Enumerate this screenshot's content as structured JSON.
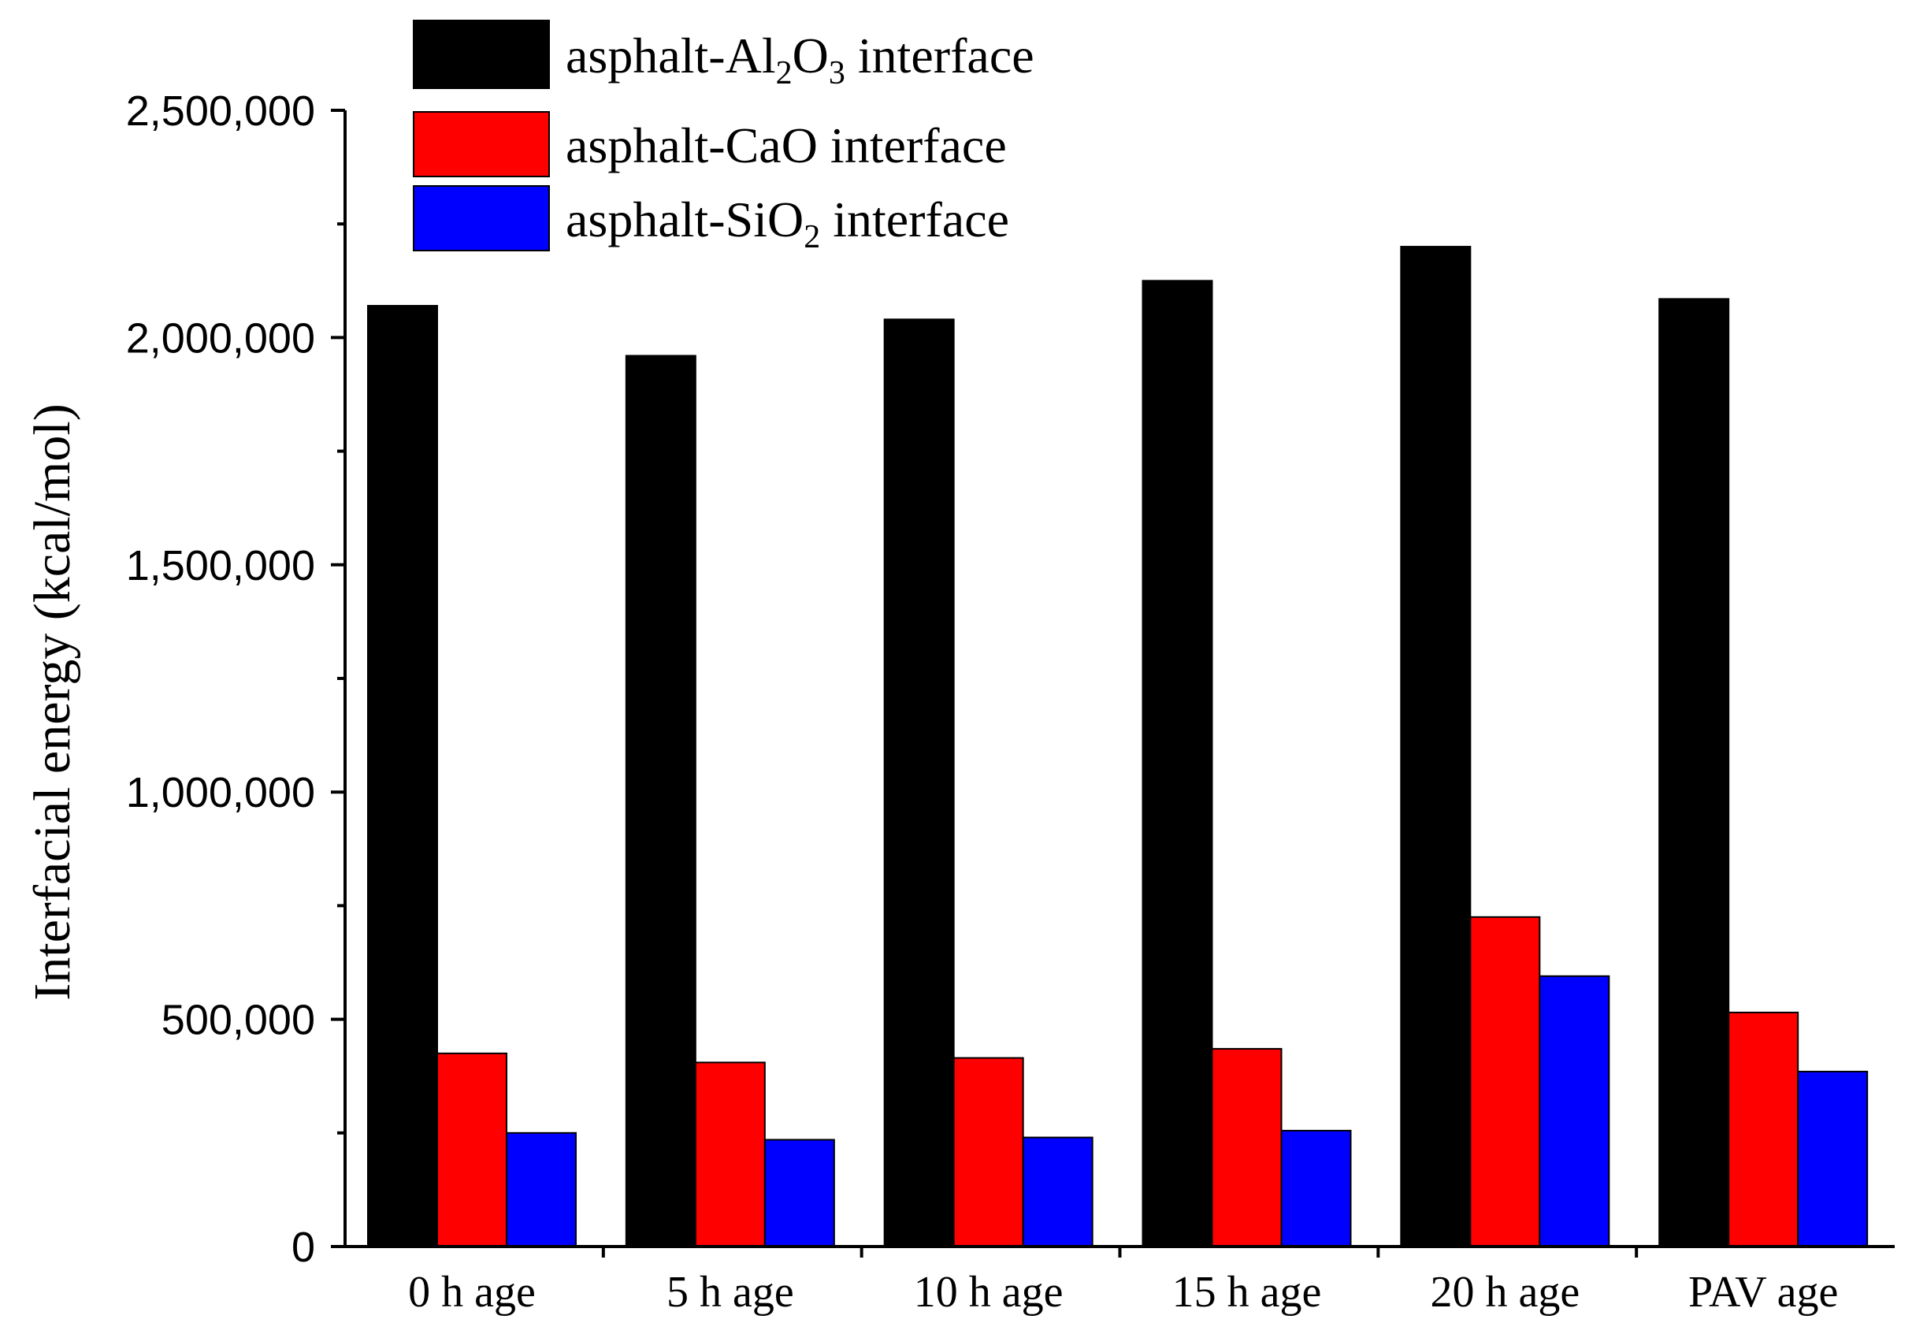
{
  "chart_data": {
    "type": "bar",
    "title": "",
    "xlabel": "",
    "ylabel": "Interfacial energy (kcal/mol)",
    "ylim": [
      0,
      2500000
    ],
    "yticks": [
      0,
      500000,
      1000000,
      1500000,
      2000000,
      2500000
    ],
    "ytick_labels": [
      "0",
      "500,000",
      "1,000,000",
      "1,500,000",
      "2,000,000",
      "2,500,000"
    ],
    "categories": [
      "0 h age",
      "5 h age",
      "10 h age",
      "15 h age",
      "20 h age",
      "PAV age"
    ],
    "series": [
      {
        "name": "asphalt-Al2O3 interface",
        "legend_parts": [
          {
            "t": "asphalt-Al"
          },
          {
            "t": "2",
            "sub": true
          },
          {
            "t": "O"
          },
          {
            "t": "3",
            "sub": true
          },
          {
            "t": " interface"
          }
        ],
        "color": "#000000",
        "values": [
          2070000,
          1960000,
          2040000,
          2125000,
          2200000,
          2085000
        ]
      },
      {
        "name": "asphalt-CaO interface",
        "legend_parts": [
          {
            "t": "asphalt-CaO interface"
          }
        ],
        "color": "#ff0000",
        "values": [
          425000,
          405000,
          415000,
          435000,
          725000,
          515000
        ]
      },
      {
        "name": "asphalt-SiO2 interface",
        "legend_parts": [
          {
            "t": "asphalt-SiO"
          },
          {
            "t": "2",
            "sub": true
          },
          {
            "t": " interface"
          }
        ],
        "color": "#0000ff",
        "values": [
          250000,
          235000,
          240000,
          255000,
          595000,
          385000
        ]
      }
    ],
    "legend_position": "top"
  }
}
